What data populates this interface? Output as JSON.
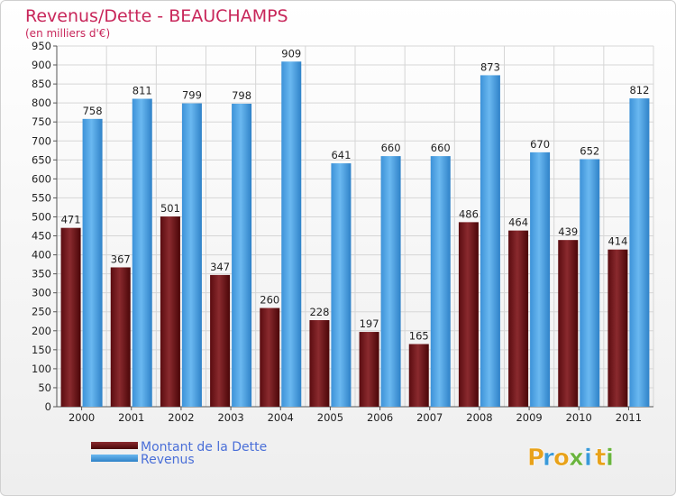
{
  "chart_data": {
    "type": "bar",
    "title": "Revenus/Dette - BEAUCHAMPS",
    "subtitle": "(en milliers d'€)",
    "categories": [
      "2000",
      "2001",
      "2002",
      "2003",
      "2004",
      "2005",
      "2006",
      "2007",
      "2008",
      "2009",
      "2010",
      "2011"
    ],
    "series": [
      {
        "name": "Montant de la Dette",
        "color": "#7a1b1f",
        "values": [
          471,
          367,
          501,
          347,
          260,
          228,
          197,
          165,
          486,
          464,
          439,
          414
        ]
      },
      {
        "name": "Revenus",
        "color": "#4a9fe2",
        "values": [
          758,
          811,
          799,
          798,
          909,
          641,
          660,
          660,
          873,
          670,
          652,
          812
        ]
      }
    ],
    "ylim": [
      0,
      950
    ],
    "ytick_step": 50,
    "grid": true,
    "legend_position": "bottom-left"
  },
  "brand": {
    "letters": [
      "P",
      "r",
      "o",
      "x",
      "i",
      "t",
      "i"
    ],
    "colors": [
      "#e8a21a",
      "#3a9ad9",
      "#e8a21a",
      "#6ab43e",
      "#3a9ad9",
      "#e8a21a",
      "#6ab43e"
    ]
  }
}
